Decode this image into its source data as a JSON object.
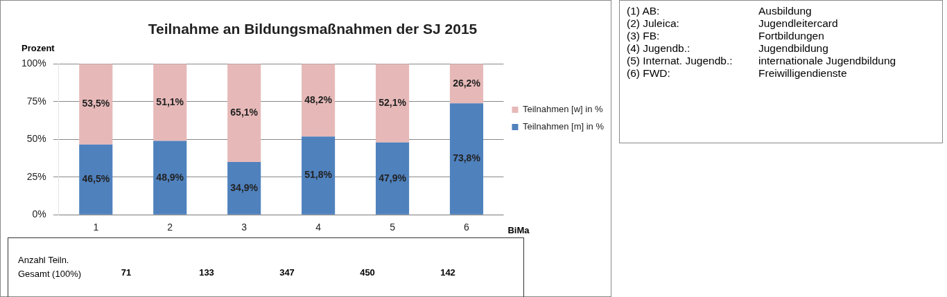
{
  "chart_data": {
    "type": "bar",
    "stacked": true,
    "title": "Teilnahme an Bildungsmaßnahmen der SJ 2015",
    "xlabel": "BiMa",
    "ylabel": "Prozent",
    "categories": [
      "1",
      "2",
      "3",
      "4",
      "5",
      "6"
    ],
    "series": [
      {
        "name": "Teilnahmen [m] in %",
        "color": "#4f81bd",
        "values": [
          46.5,
          48.9,
          34.9,
          51.8,
          47.9,
          73.8
        ],
        "value_labels": [
          "46,5%",
          "48,9%",
          "34,9%",
          "51,8%",
          "47,9%",
          "73,8%"
        ]
      },
      {
        "name": "Teilnahmen [w] in %",
        "color": "#e6b9b8",
        "values": [
          53.5,
          51.1,
          65.1,
          48.2,
          52.1,
          26.2
        ],
        "value_labels": [
          "53,5%",
          "51,1%",
          "65,1%",
          "48,2%",
          "52,1%",
          "26,2%"
        ]
      }
    ],
    "ylim": [
      0,
      100
    ],
    "yticks": [
      {
        "value": 0,
        "label": "0%"
      },
      {
        "value": 25,
        "label": "25%"
      },
      {
        "value": 50,
        "label": "50%"
      },
      {
        "value": 75,
        "label": "75%"
      },
      {
        "value": 100,
        "label": "100%"
      }
    ],
    "grid": "y",
    "legend": "right",
    "annotations": [
      "Anzahl Teiln.\nGesamt (100%)",
      "71",
      "133",
      "347",
      "450",
      "142",
      "(1) AB:\tAusbildung",
      "(2) Juleica:\tJugendleitercard",
      "(3) FB:\tFortbildungen",
      "(4) Jugendb.:\tJugendbildung",
      "(5) Internat. Jugendb.:\tinternationale Jugendbildung",
      "(6) FWD:\tFreiwilligendienste"
    ]
  }
}
